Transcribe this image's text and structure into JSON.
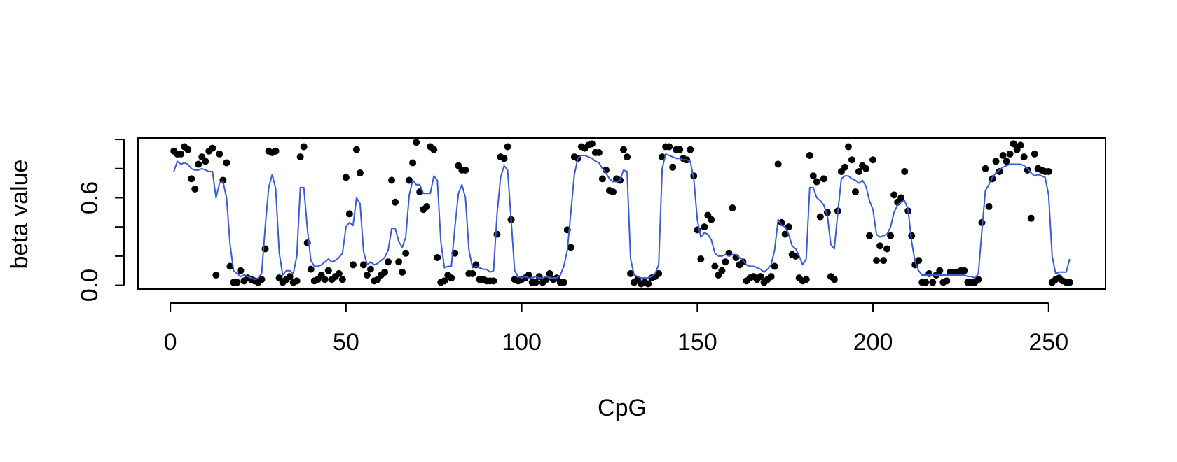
{
  "chart_data": {
    "type": "scatter",
    "xlabel": "CpG",
    "ylabel": "beta value",
    "xlim": [
      -9.2,
      266.2
    ],
    "ylim": [
      -0.026,
      1.01
    ],
    "xticks": [
      0,
      50,
      100,
      150,
      200,
      250
    ],
    "yticks": [
      {
        "value": 0,
        "label": "0.0"
      },
      {
        "value": 0.2,
        "label": null
      },
      {
        "value": 0.4,
        "label": null
      },
      0.6,
      {
        "value": 0.8,
        "label": null
      },
      {
        "value": 1,
        "label": null
      }
    ],
    "x": [
      1,
      2,
      3,
      4,
      5,
      6,
      7,
      8,
      9,
      10,
      11,
      12,
      13,
      14,
      15,
      16,
      17,
      18,
      19,
      20,
      21,
      22,
      23,
      24,
      25,
      26,
      27,
      28,
      29,
      30,
      31,
      32,
      33,
      34,
      35,
      36,
      37,
      38,
      39,
      40,
      41,
      42,
      43,
      44,
      45,
      46,
      47,
      48,
      49,
      50,
      51,
      52,
      53,
      54,
      55,
      56,
      57,
      58,
      59,
      60,
      61,
      62,
      63,
      64,
      65,
      66,
      67,
      68,
      69,
      70,
      71,
      72,
      73,
      74,
      75,
      76,
      77,
      78,
      79,
      80,
      81,
      82,
      83,
      84,
      85,
      86,
      87,
      88,
      89,
      90,
      91,
      92,
      93,
      94,
      95,
      96,
      97,
      98,
      99,
      100,
      101,
      102,
      103,
      104,
      105,
      106,
      107,
      108,
      109,
      110,
      111,
      112,
      113,
      114,
      115,
      116,
      117,
      118,
      119,
      120,
      121,
      122,
      123,
      124,
      125,
      126,
      127,
      128,
      129,
      130,
      131,
      132,
      133,
      134,
      135,
      136,
      137,
      138,
      139,
      140,
      141,
      142,
      143,
      144,
      145,
      146,
      147,
      148,
      149,
      150,
      151,
      152,
      153,
      154,
      155,
      156,
      157,
      158,
      159,
      160,
      161,
      162,
      163,
      164,
      165,
      166,
      167,
      168,
      169,
      170,
      171,
      172,
      173,
      174,
      175,
      176,
      177,
      178,
      179,
      180,
      181,
      182,
      183,
      184,
      185,
      186,
      187,
      188,
      189,
      190,
      191,
      192,
      193,
      194,
      195,
      196,
      197,
      198,
      199,
      200,
      201,
      202,
      203,
      204,
      205,
      206,
      207,
      208,
      209,
      210,
      211,
      212,
      213,
      214,
      215,
      216,
      217,
      218,
      219,
      220,
      221,
      222,
      223,
      224,
      225,
      226,
      227,
      228,
      229,
      230,
      231,
      232,
      233,
      234,
      235,
      236,
      237,
      238,
      239,
      240,
      241,
      242,
      243,
      244,
      245,
      246,
      247,
      248,
      249,
      250,
      251,
      252,
      253,
      254,
      255,
      256
    ],
    "series": [
      {
        "type": "scatter",
        "color": "#000000",
        "values": [
          0.92,
          0.9,
          0.9,
          0.95,
          0.93,
          0.73,
          0.66,
          0.83,
          0.88,
          0.85,
          0.92,
          0.94,
          0.07,
          0.9,
          0.72,
          0.84,
          0.13,
          0.02,
          0.02,
          0.1,
          0.03,
          0.05,
          0.04,
          0.03,
          0.02,
          0.04,
          0.25,
          0.92,
          0.91,
          0.92,
          0.05,
          0.02,
          0.04,
          0.06,
          0.02,
          0.03,
          0.88,
          0.95,
          0.29,
          0.11,
          0.03,
          0.04,
          0.07,
          0.04,
          0.1,
          0.04,
          0.06,
          0.08,
          0.04,
          0.74,
          0.49,
          0.14,
          0.93,
          0.77,
          0.14,
          0.07,
          0.11,
          0.03,
          0.04,
          0.07,
          0.09,
          0.16,
          0.72,
          0.57,
          0.16,
          0.09,
          0.22,
          0.72,
          0.84,
          0.98,
          0.64,
          0.52,
          0.54,
          0.95,
          0.93,
          0.19,
          0.02,
          0.03,
          0.07,
          0.05,
          0.22,
          0.82,
          0.79,
          0.79,
          0.08,
          0.08,
          0.14,
          0.04,
          0.04,
          0.03,
          0.03,
          0.03,
          0.35,
          0.88,
          0.87,
          0.95,
          0.45,
          0.04,
          0.03,
          0.04,
          0.05,
          0.07,
          0.02,
          0.02,
          0.06,
          0.02,
          0.04,
          0.08,
          0.04,
          0.05,
          0.02,
          0.02,
          0.38,
          0.26,
          0.88,
          0.87,
          0.95,
          0.94,
          0.96,
          0.97,
          0.91,
          0.91,
          0.73,
          0.79,
          0.65,
          0.64,
          0.73,
          0.72,
          0.93,
          0.88,
          0.08,
          0.02,
          0.04,
          0.01,
          0.02,
          0.01,
          0.05,
          0.06,
          0.08,
          0.88,
          0.95,
          0.95,
          0.81,
          0.93,
          0.93,
          0.87,
          0.86,
          0.93,
          0.75,
          0.38,
          0.18,
          0.4,
          0.48,
          0.45,
          0.13,
          0.07,
          0.1,
          0.16,
          0.22,
          0.53,
          0.19,
          0.14,
          0.16,
          0.03,
          0.05,
          0.06,
          0.04,
          0.06,
          0.02,
          0.04,
          0.06,
          0.13,
          0.83,
          0.43,
          0.35,
          0.4,
          0.21,
          0.2,
          0.05,
          0.03,
          0.04,
          0.89,
          0.75,
          0.71,
          0.47,
          0.73,
          0.5,
          0.06,
          0.04,
          0.51,
          0.78,
          0.81,
          0.95,
          0.86,
          0.64,
          0.78,
          0.82,
          0.8,
          0.34,
          0.86,
          0.17,
          0.27,
          0.17,
          0.25,
          0.34,
          0.62,
          0.57,
          0.6,
          0.78,
          0.51,
          0.34,
          0.14,
          0.17,
          0.02,
          0.02,
          0.08,
          0.02,
          0.07,
          0.1,
          0.02,
          0.03,
          0.09,
          0.09,
          0.09,
          0.1,
          0.1,
          0.02,
          0.02,
          0.02,
          0.04,
          0.43,
          0.8,
          0.54,
          0.73,
          0.85,
          0.78,
          0.89,
          0.85,
          0.9,
          0.97,
          0.93,
          0.96,
          0.88,
          0.79,
          0.46,
          0.9,
          0.8,
          0.79,
          0.78,
          0.78,
          0.02,
          0.04,
          0.05,
          0.03,
          0.02,
          0.02
        ]
      },
      {
        "type": "line",
        "color": "#3a5bd9",
        "values": [
          0.78,
          0.85,
          0.83,
          0.84,
          0.83,
          0.8,
          0.79,
          0.79,
          0.8,
          0.79,
          0.78,
          0.78,
          0.6,
          0.7,
          0.71,
          0.6,
          0.28,
          0.1,
          0.08,
          0.06,
          0.07,
          0.06,
          0.05,
          0.04,
          0.05,
          0.08,
          0.4,
          0.67,
          0.76,
          0.66,
          0.22,
          0.07,
          0.1,
          0.1,
          0.08,
          0.2,
          0.67,
          0.67,
          0.39,
          0.17,
          0.13,
          0.13,
          0.14,
          0.16,
          0.18,
          0.16,
          0.17,
          0.19,
          0.22,
          0.4,
          0.43,
          0.41,
          0.6,
          0.56,
          0.23,
          0.14,
          0.16,
          0.14,
          0.15,
          0.17,
          0.19,
          0.24,
          0.39,
          0.39,
          0.3,
          0.26,
          0.33,
          0.62,
          0.72,
          0.69,
          0.69,
          0.63,
          0.63,
          0.63,
          0.75,
          0.72,
          0.3,
          0.12,
          0.13,
          0.13,
          0.4,
          0.63,
          0.69,
          0.6,
          0.24,
          0.12,
          0.13,
          0.12,
          0.11,
          0.11,
          0.09,
          0.1,
          0.49,
          0.74,
          0.82,
          0.79,
          0.45,
          0.1,
          0.06,
          0.05,
          0.06,
          0.05,
          0.05,
          0.06,
          0.05,
          0.05,
          0.06,
          0.05,
          0.05,
          0.05,
          0.07,
          0.13,
          0.24,
          0.5,
          0.76,
          0.87,
          0.89,
          0.89,
          0.88,
          0.87,
          0.85,
          0.84,
          0.8,
          0.77,
          0.73,
          0.71,
          0.71,
          0.72,
          0.79,
          0.78,
          0.18,
          0.07,
          0.06,
          0.05,
          0.05,
          0.05,
          0.06,
          0.08,
          0.14,
          0.8,
          0.9,
          0.89,
          0.88,
          0.87,
          0.87,
          0.86,
          0.86,
          0.85,
          0.73,
          0.45,
          0.33,
          0.36,
          0.35,
          0.31,
          0.22,
          0.2,
          0.2,
          0.21,
          0.2,
          0.21,
          0.21,
          0.19,
          0.17,
          0.14,
          0.13,
          0.13,
          0.12,
          0.11,
          0.09,
          0.11,
          0.14,
          0.24,
          0.45,
          0.41,
          0.4,
          0.35,
          0.27,
          0.25,
          0.2,
          0.14,
          0.18,
          0.67,
          0.67,
          0.6,
          0.58,
          0.55,
          0.48,
          0.28,
          0.25,
          0.5,
          0.73,
          0.75,
          0.75,
          0.73,
          0.72,
          0.7,
          0.72,
          0.68,
          0.58,
          0.52,
          0.35,
          0.33,
          0.34,
          0.35,
          0.4,
          0.5,
          0.55,
          0.57,
          0.58,
          0.52,
          0.3,
          0.16,
          0.1,
          0.07,
          0.07,
          0.07,
          0.07,
          0.07,
          0.07,
          0.07,
          0.07,
          0.07,
          0.07,
          0.07,
          0.07,
          0.07,
          0.06,
          0.06,
          0.05,
          0.08,
          0.37,
          0.65,
          0.69,
          0.74,
          0.77,
          0.79,
          0.81,
          0.82,
          0.83,
          0.83,
          0.83,
          0.83,
          0.82,
          0.8,
          0.77,
          0.75,
          0.76,
          0.75,
          0.74,
          0.62,
          0.2,
          0.08,
          0.09,
          0.09,
          0.09,
          0.18
        ]
      }
    ]
  }
}
